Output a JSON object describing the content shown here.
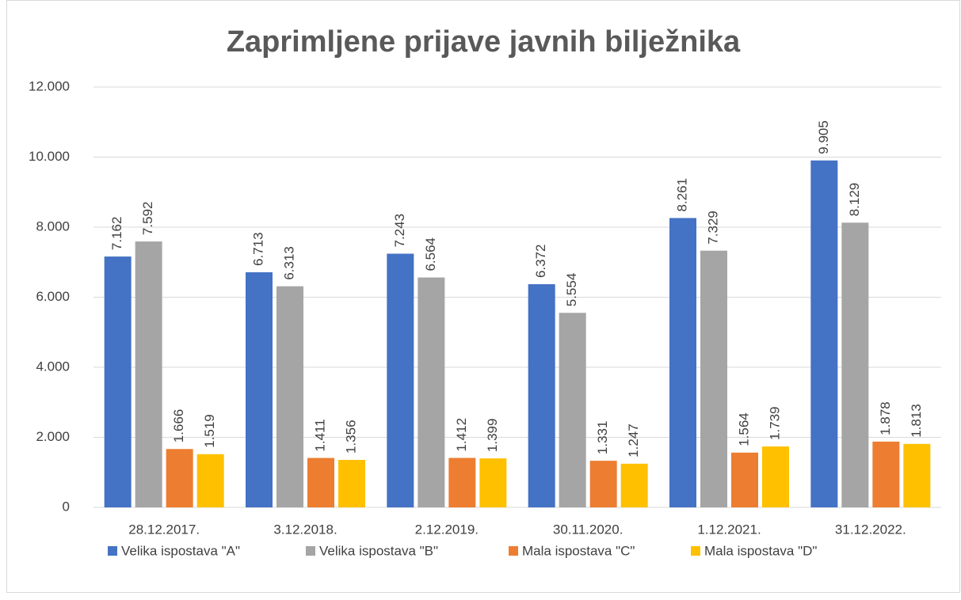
{
  "chart_data": {
    "type": "bar",
    "title": "Zaprimljene prijave javnih bilježnika",
    "categories": [
      "28.12.2017.",
      "3.12.2018.",
      "2.12.2019.",
      "30.11.2020.",
      "1.12.2021.",
      "31.12.2022."
    ],
    "series": [
      {
        "name": "Velika ispostava \"A\"",
        "color": "#4472c4",
        "values": [
          7162,
          6713,
          7243,
          6372,
          8261,
          9905
        ],
        "value_labels": [
          "7.162",
          "6.713",
          "7.243",
          "6.372",
          "8.261",
          "9.905"
        ]
      },
      {
        "name": "Velika ispostava \"B\"",
        "color": "#a5a5a5",
        "values": [
          7592,
          6313,
          6564,
          5554,
          7329,
          8129
        ],
        "value_labels": [
          "7.592",
          "6.313",
          "6.564",
          "5.554",
          "7.329",
          "8.129"
        ]
      },
      {
        "name": "Mala ispostava \"C\"",
        "color": "#ed7d31",
        "values": [
          1666,
          1411,
          1412,
          1331,
          1564,
          1878
        ],
        "value_labels": [
          "1.666",
          "1.411",
          "1.412",
          "1.331",
          "1.564",
          "1.878"
        ]
      },
      {
        "name": "Mala ispostava \"D\"",
        "color": "#ffc000",
        "values": [
          1519,
          1356,
          1399,
          1247,
          1739,
          1813
        ],
        "value_labels": [
          "1.519",
          "1.356",
          "1.399",
          "1.247",
          "1.739",
          "1.813"
        ]
      }
    ],
    "ylim": [
      0,
      12000
    ],
    "yticks": [
      0,
      {
        "value": 2000,
        "label": "2.000"
      },
      {
        "value": 4000,
        "label": "4.000"
      },
      {
        "value": 6000,
        "label": "6.000"
      },
      {
        "value": 8000,
        "label": "8.000"
      },
      {
        "value": 10000,
        "label": "10.000"
      },
      {
        "value": 12000,
        "label": "12.000"
      }
    ],
    "grid": true,
    "legend": "bottom"
  }
}
